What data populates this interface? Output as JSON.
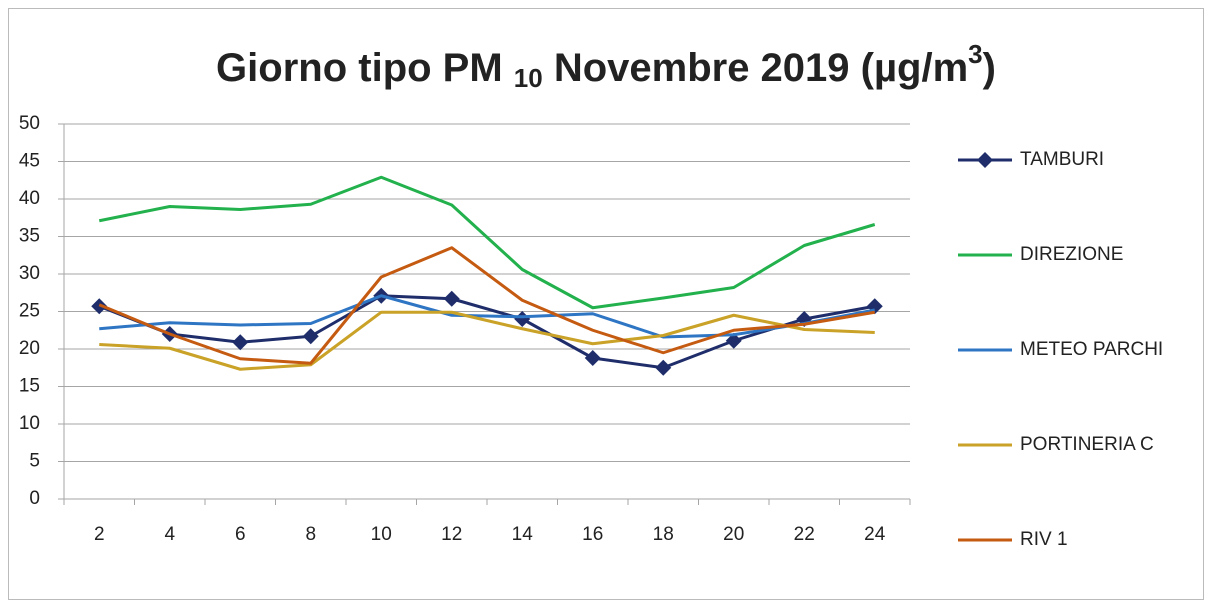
{
  "chart_data": {
    "type": "line",
    "title_parts": [
      "Giorno tipo PM ",
      "10",
      " Novembre 2019 (µg/m",
      "3",
      ")"
    ],
    "categories": [
      "2",
      "4",
      "6",
      "8",
      "10",
      "12",
      "14",
      "16",
      "18",
      "20",
      "22",
      "24"
    ],
    "series": [
      {
        "name": "TAMBURI",
        "color": "#1f2e6b",
        "marker": "diamond",
        "values": [
          25.7,
          22,
          20.9,
          21.7,
          27.1,
          26.7,
          24,
          18.8,
          17.5,
          21.1,
          24,
          25.7
        ]
      },
      {
        "name": "DIREZIONE",
        "color": "#22b14c",
        "values": [
          37.1,
          39,
          38.6,
          39.3,
          42.9,
          39.2,
          30.6,
          25.5,
          26.8,
          28.2,
          33.8,
          36.6
        ]
      },
      {
        "name": "METEO PARCHI",
        "color": "#2e75c4",
        "values": [
          22.7,
          23.5,
          23.2,
          23.4,
          27.1,
          24.5,
          24.3,
          24.7,
          21.6,
          21.9,
          23.4,
          25.2
        ]
      },
      {
        "name": "PORTINERIA C",
        "color": "#c9a227",
        "values": [
          20.6,
          20.1,
          17.3,
          17.9,
          24.9,
          24.9,
          22.7,
          20.7,
          21.8,
          24.5,
          22.6,
          22.2
        ]
      },
      {
        "name": "RIV 1",
        "color": "#c55a11",
        "values": [
          25.9,
          22,
          18.7,
          18.1,
          29.6,
          33.5,
          26.5,
          22.5,
          19.5,
          22.5,
          23.3,
          24.9
        ]
      }
    ],
    "ylim": [
      0,
      50
    ],
    "yticks": [
      0,
      5,
      10,
      15,
      20,
      25,
      30,
      35,
      40,
      45,
      50
    ],
    "grid": true,
    "legend": "right"
  }
}
